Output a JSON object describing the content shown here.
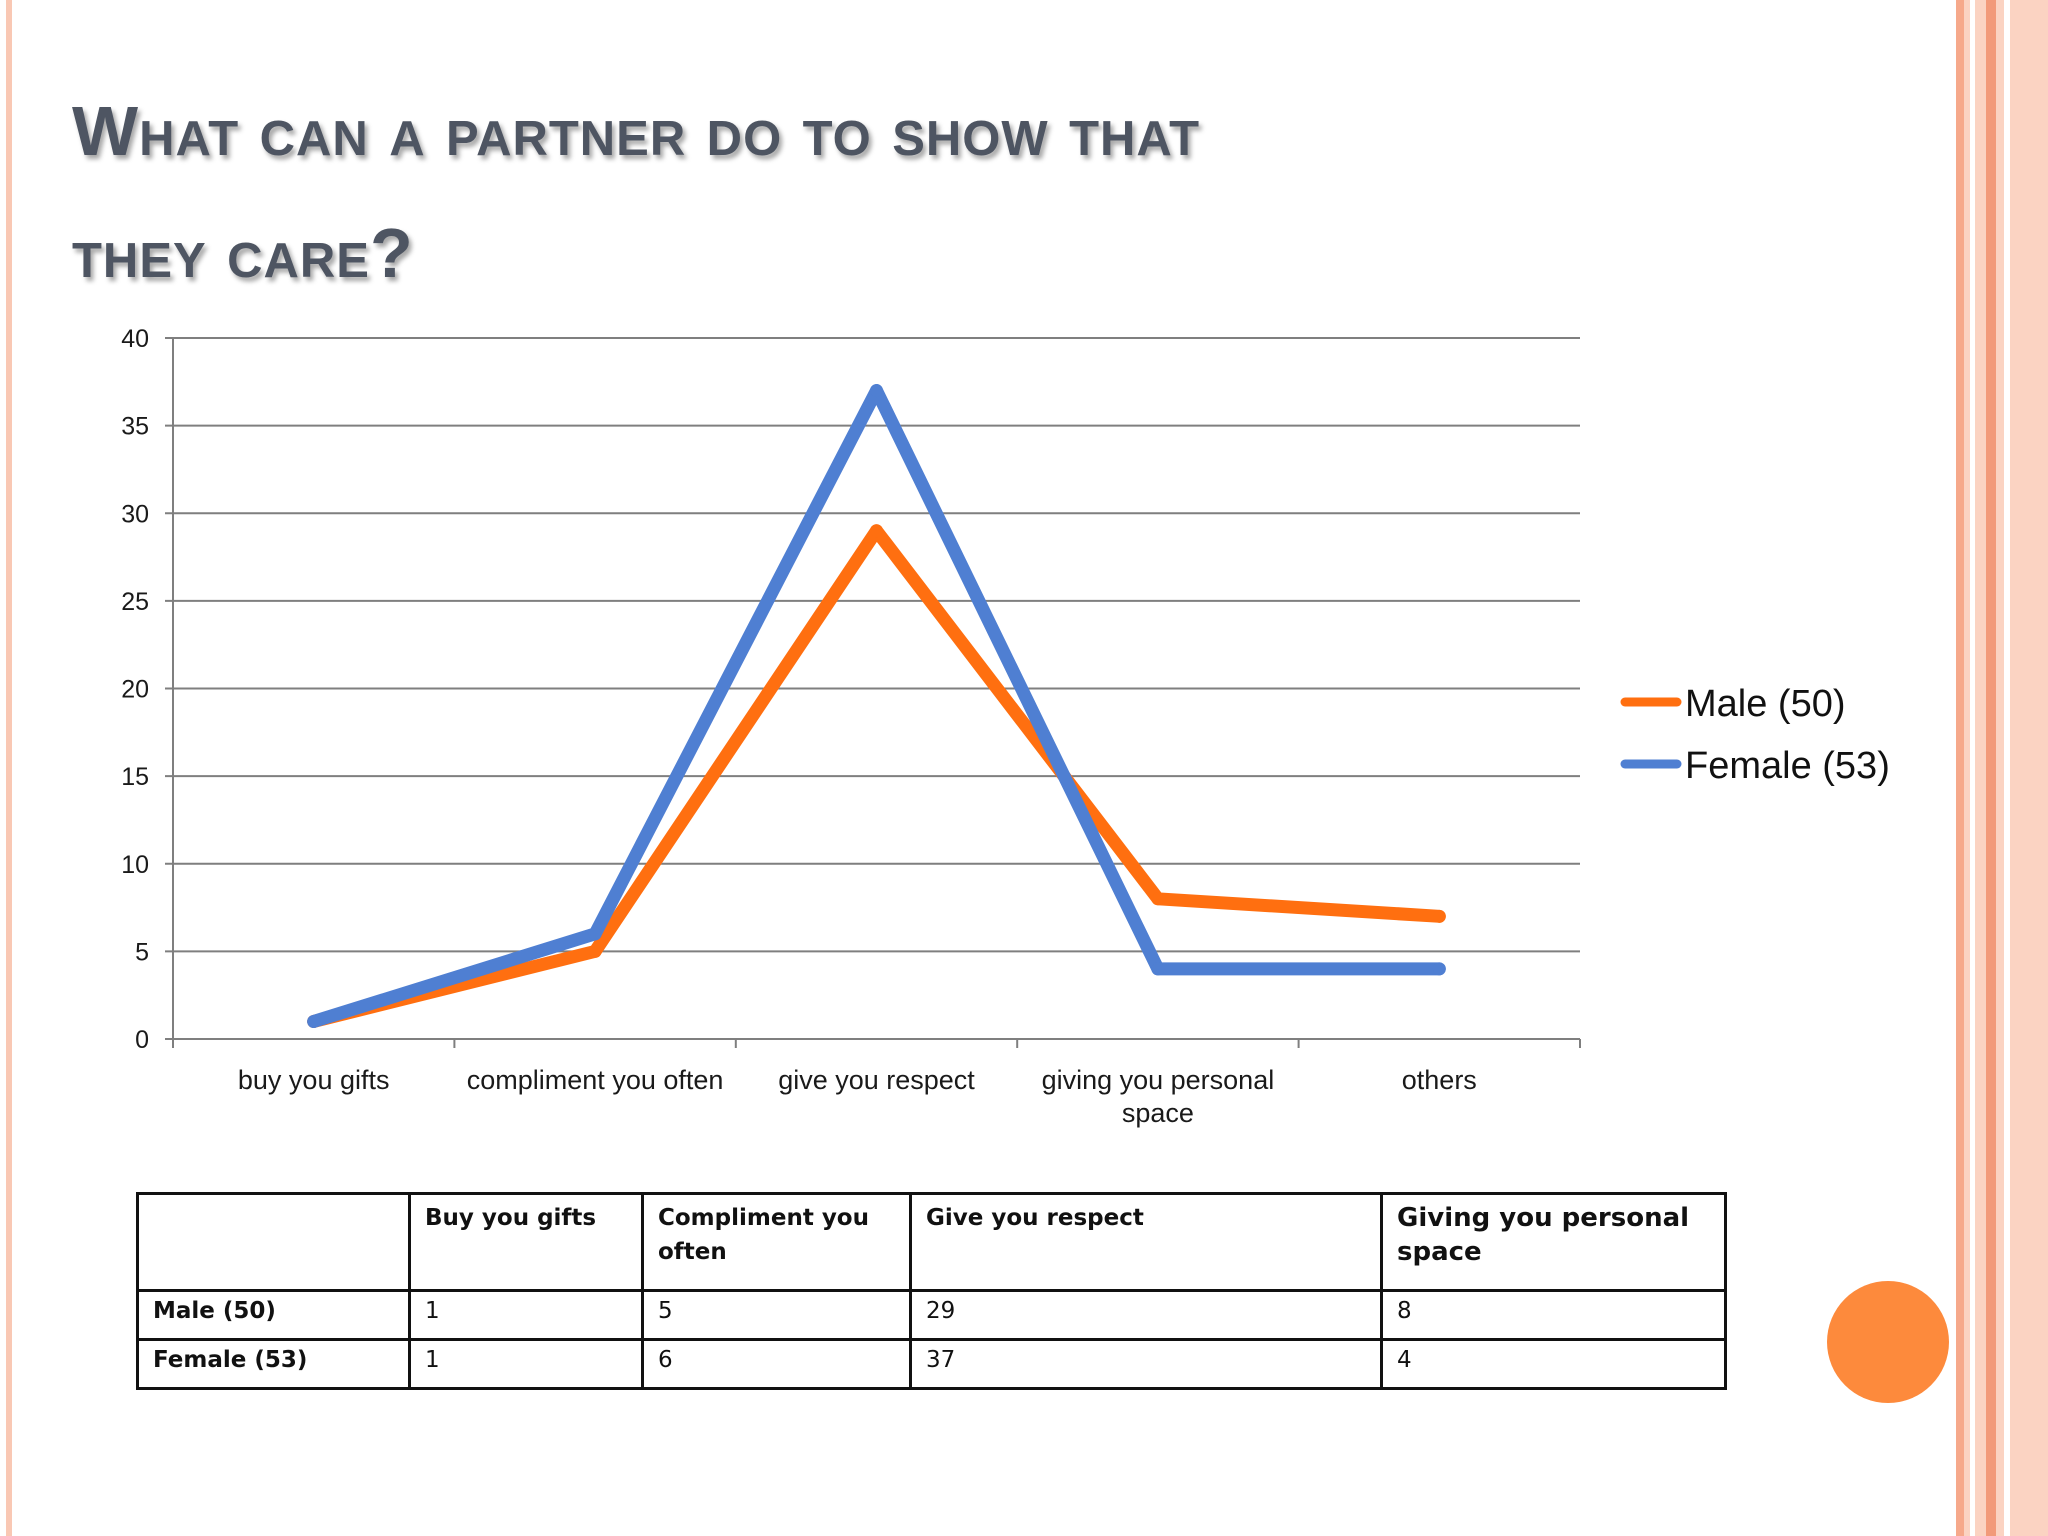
{
  "slide": {
    "title_line1": "What can a partner do to show that",
    "title_line2": "they care?"
  },
  "chart_data": {
    "type": "line",
    "categories": [
      "buy you gifts",
      "compliment you often",
      "give you respect",
      "giving you personal space",
      "others"
    ],
    "category_lines": [
      [
        "buy you gifts"
      ],
      [
        "compliment you often"
      ],
      [
        "give you respect"
      ],
      [
        "giving you personal",
        "space"
      ],
      [
        "others"
      ]
    ],
    "series": [
      {
        "name": "Male (50)",
        "values": [
          1,
          5,
          29,
          8,
          7
        ],
        "color": "#ff6f10"
      },
      {
        "name": "Female (53)",
        "values": [
          1,
          6,
          37,
          4,
          4
        ],
        "color": "#4f7fd2"
      }
    ],
    "ylim": [
      0,
      40
    ],
    "yticks": [
      0,
      5,
      10,
      15,
      20,
      25,
      30,
      35,
      40
    ],
    "grid": true,
    "legend": "right",
    "title": "",
    "xlabel": "",
    "ylabel": ""
  },
  "table": {
    "headers": [
      "",
      "Buy you gifts",
      "Compliment you often",
      "Give you respect",
      "Giving you personal space"
    ],
    "rows": [
      {
        "label": "Male (50)",
        "cells": [
          "1",
          "5",
          "29",
          "8"
        ]
      },
      {
        "label": "Female (53)",
        "cells": [
          "1",
          "6",
          "37",
          "4"
        ]
      }
    ]
  },
  "colors": {
    "accent_circle": "#fd8a3c",
    "title": "#4e5562"
  }
}
